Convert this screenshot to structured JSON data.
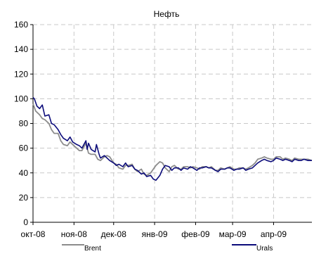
{
  "chart_data": {
    "type": "line",
    "title": "Нефть",
    "xlabel": "",
    "ylabel": "",
    "ylim": [
      0,
      160
    ],
    "yticks": [
      0,
      20,
      40,
      60,
      80,
      100,
      120,
      140,
      160
    ],
    "xlim": [
      "2008-10-01",
      "2009-04-30"
    ],
    "xticks": [
      {
        "label": "окт-08",
        "date": "2008-10-01"
      },
      {
        "label": "ноя-08",
        "date": "2008-11-01"
      },
      {
        "label": "дек-08",
        "date": "2008-12-01"
      },
      {
        "label": "янв-09",
        "date": "2009-01-01"
      },
      {
        "label": "фев-09",
        "date": "2009-02-01"
      },
      {
        "label": "мар-09",
        "date": "2009-03-01"
      },
      {
        "label": "апр-09",
        "date": "2009-04-01"
      }
    ],
    "grid": true,
    "legend": "bottom",
    "series": [
      {
        "name": "Brent",
        "color": "#8c8c8c",
        "points": [
          [
            "2008-10-01",
            96
          ],
          [
            "2008-10-03",
            90
          ],
          [
            "2008-10-06",
            87
          ],
          [
            "2008-10-08",
            84
          ],
          [
            "2008-10-10",
            83
          ],
          [
            "2008-10-13",
            80
          ],
          [
            "2008-10-15",
            75
          ],
          [
            "2008-10-17",
            72
          ],
          [
            "2008-10-20",
            72
          ],
          [
            "2008-10-22",
            66
          ],
          [
            "2008-10-24",
            63
          ],
          [
            "2008-10-27",
            62
          ],
          [
            "2008-10-29",
            65
          ],
          [
            "2008-10-31",
            63
          ],
          [
            "2008-11-03",
            60
          ],
          [
            "2008-11-05",
            58
          ],
          [
            "2008-11-07",
            58
          ],
          [
            "2008-11-10",
            64
          ],
          [
            "2008-11-12",
            56
          ],
          [
            "2008-11-14",
            55
          ],
          [
            "2008-11-17",
            55
          ],
          [
            "2008-11-19",
            51
          ],
          [
            "2008-11-21",
            50
          ],
          [
            "2008-11-24",
            53
          ],
          [
            "2008-11-26",
            54
          ],
          [
            "2008-11-28",
            53
          ],
          [
            "2008-12-01",
            48
          ],
          [
            "2008-12-03",
            47
          ],
          [
            "2008-12-05",
            44
          ],
          [
            "2008-12-08",
            43
          ],
          [
            "2008-12-10",
            46
          ],
          [
            "2008-12-12",
            46
          ],
          [
            "2008-12-15",
            47
          ],
          [
            "2008-12-17",
            43
          ],
          [
            "2008-12-19",
            41
          ],
          [
            "2008-12-22",
            43
          ],
          [
            "2008-12-24",
            39
          ],
          [
            "2008-12-26",
            38
          ],
          [
            "2008-12-29",
            40
          ],
          [
            "2008-12-31",
            43
          ],
          [
            "2009-01-02",
            46
          ],
          [
            "2009-01-05",
            49
          ],
          [
            "2009-01-07",
            48
          ],
          [
            "2009-01-09",
            44
          ],
          [
            "2009-01-12",
            41
          ],
          [
            "2009-01-14",
            45
          ],
          [
            "2009-01-16",
            46
          ],
          [
            "2009-01-19",
            43
          ],
          [
            "2009-01-21",
            43
          ],
          [
            "2009-01-23",
            45
          ],
          [
            "2009-01-26",
            45
          ],
          [
            "2009-01-28",
            44
          ],
          [
            "2009-01-30",
            45
          ],
          [
            "2009-02-02",
            44
          ],
          [
            "2009-02-04",
            43
          ],
          [
            "2009-02-06",
            45
          ],
          [
            "2009-02-09",
            45
          ],
          [
            "2009-02-11",
            44
          ],
          [
            "2009-02-13",
            45
          ],
          [
            "2009-02-16",
            42
          ],
          [
            "2009-02-18",
            42
          ],
          [
            "2009-02-20",
            44
          ],
          [
            "2009-02-23",
            43
          ],
          [
            "2009-02-25",
            44
          ],
          [
            "2009-02-27",
            45
          ],
          [
            "2009-03-02",
            43
          ],
          [
            "2009-03-04",
            43
          ],
          [
            "2009-03-06",
            44
          ],
          [
            "2009-03-09",
            44
          ],
          [
            "2009-03-11",
            43
          ],
          [
            "2009-03-13",
            44
          ],
          [
            "2009-03-16",
            46
          ],
          [
            "2009-03-18",
            48
          ],
          [
            "2009-03-20",
            51
          ],
          [
            "2009-03-23",
            52
          ],
          [
            "2009-03-25",
            53
          ],
          [
            "2009-03-27",
            52
          ],
          [
            "2009-03-30",
            51
          ],
          [
            "2009-04-01",
            51
          ],
          [
            "2009-04-03",
            53
          ],
          [
            "2009-04-06",
            53
          ],
          [
            "2009-04-08",
            51
          ],
          [
            "2009-04-10",
            52
          ],
          [
            "2009-04-13",
            51
          ],
          [
            "2009-04-15",
            50
          ],
          [
            "2009-04-17",
            52
          ],
          [
            "2009-04-20",
            51
          ],
          [
            "2009-04-22",
            51
          ],
          [
            "2009-04-24",
            51
          ],
          [
            "2009-04-27",
            51
          ],
          [
            "2009-04-30",
            50
          ]
        ]
      },
      {
        "name": "Urals",
        "color": "#0b0b7a",
        "points": [
          [
            "2008-10-01",
            101
          ],
          [
            "2008-10-02",
            100
          ],
          [
            "2008-10-04",
            94
          ],
          [
            "2008-10-06",
            92
          ],
          [
            "2008-10-08",
            95
          ],
          [
            "2008-10-10",
            86
          ],
          [
            "2008-10-13",
            87
          ],
          [
            "2008-10-15",
            80
          ],
          [
            "2008-10-17",
            79
          ],
          [
            "2008-10-20",
            75
          ],
          [
            "2008-10-22",
            71
          ],
          [
            "2008-10-24",
            68
          ],
          [
            "2008-10-27",
            66
          ],
          [
            "2008-10-29",
            69
          ],
          [
            "2008-10-31",
            65
          ],
          [
            "2008-11-03",
            63
          ],
          [
            "2008-11-05",
            62
          ],
          [
            "2008-11-07",
            60
          ],
          [
            "2008-11-10",
            66
          ],
          [
            "2008-11-11",
            59
          ],
          [
            "2008-11-12",
            64
          ],
          [
            "2008-11-14",
            59
          ],
          [
            "2008-11-17",
            57
          ],
          [
            "2008-11-18",
            63
          ],
          [
            "2008-11-20",
            55
          ],
          [
            "2008-11-21",
            52
          ],
          [
            "2008-11-24",
            54
          ],
          [
            "2008-11-26",
            52
          ],
          [
            "2008-11-28",
            50
          ],
          [
            "2008-12-01",
            48
          ],
          [
            "2008-12-03",
            46
          ],
          [
            "2008-12-05",
            47
          ],
          [
            "2008-12-08",
            45
          ],
          [
            "2008-12-10",
            48
          ],
          [
            "2008-12-12",
            45
          ],
          [
            "2008-12-15",
            46
          ],
          [
            "2008-12-17",
            43
          ],
          [
            "2008-12-19",
            42
          ],
          [
            "2008-12-22",
            39
          ],
          [
            "2008-12-24",
            40
          ],
          [
            "2008-12-26",
            37
          ],
          [
            "2008-12-29",
            38
          ],
          [
            "2008-12-31",
            35
          ],
          [
            "2009-01-02",
            34
          ],
          [
            "2009-01-05",
            38
          ],
          [
            "2009-01-07",
            43
          ],
          [
            "2009-01-09",
            46
          ],
          [
            "2009-01-12",
            45
          ],
          [
            "2009-01-14",
            42
          ],
          [
            "2009-01-16",
            44
          ],
          [
            "2009-01-19",
            44
          ],
          [
            "2009-01-21",
            42
          ],
          [
            "2009-01-23",
            44
          ],
          [
            "2009-01-26",
            43
          ],
          [
            "2009-01-28",
            45
          ],
          [
            "2009-01-30",
            44
          ],
          [
            "2009-02-02",
            42
          ],
          [
            "2009-02-04",
            44
          ],
          [
            "2009-02-06",
            44
          ],
          [
            "2009-02-09",
            45
          ],
          [
            "2009-02-11",
            44
          ],
          [
            "2009-02-13",
            44
          ],
          [
            "2009-02-16",
            42
          ],
          [
            "2009-02-18",
            41
          ],
          [
            "2009-02-20",
            43
          ],
          [
            "2009-02-23",
            43
          ],
          [
            "2009-02-25",
            44
          ],
          [
            "2009-02-27",
            44
          ],
          [
            "2009-03-02",
            42
          ],
          [
            "2009-03-04",
            43
          ],
          [
            "2009-03-06",
            43
          ],
          [
            "2009-03-09",
            44
          ],
          [
            "2009-03-11",
            42
          ],
          [
            "2009-03-13",
            43
          ],
          [
            "2009-03-16",
            44
          ],
          [
            "2009-03-18",
            46
          ],
          [
            "2009-03-20",
            48
          ],
          [
            "2009-03-23",
            50
          ],
          [
            "2009-03-25",
            51
          ],
          [
            "2009-03-27",
            50
          ],
          [
            "2009-03-30",
            49
          ],
          [
            "2009-04-01",
            50
          ],
          [
            "2009-04-03",
            52
          ],
          [
            "2009-04-06",
            51
          ],
          [
            "2009-04-08",
            50
          ],
          [
            "2009-04-10",
            51
          ],
          [
            "2009-04-13",
            50
          ],
          [
            "2009-04-15",
            49
          ],
          [
            "2009-04-17",
            51
          ],
          [
            "2009-04-20",
            50
          ],
          [
            "2009-04-22",
            50
          ],
          [
            "2009-04-24",
            51
          ],
          [
            "2009-04-27",
            50
          ],
          [
            "2009-04-30",
            50
          ]
        ]
      }
    ]
  }
}
